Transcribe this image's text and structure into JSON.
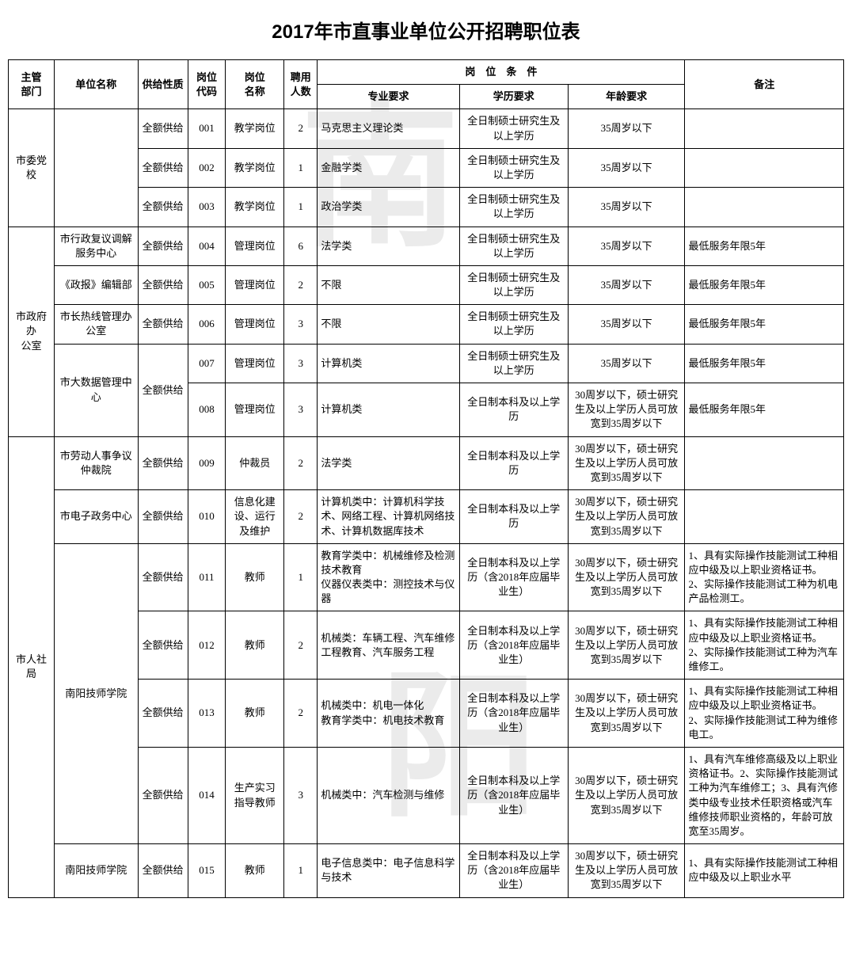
{
  "title": "2017年市直事业单位公开招聘职位表",
  "watermark1": "南",
  "watermark2": "阳",
  "headers": {
    "dept": "主管\n部门",
    "unit": "单位名称",
    "supply": "供给性质",
    "code": "岗位\n代码",
    "pos": "岗位\n名称",
    "num": "聘用\n人数",
    "cond": "岗　位　条　件",
    "major": "专业要求",
    "edu": "学历要求",
    "age": "年龄要求",
    "note": "备注"
  },
  "depts": [
    {
      "name": "市委党校",
      "units": [
        {
          "name": "",
          "rows": [
            {
              "supply": "全额供给",
              "code": "001",
              "pos": "教学岗位",
              "num": "2",
              "major": "马克思主义理论类",
              "edu": "全日制硕士研究生及以上学历",
              "age": "35周岁以下",
              "note": ""
            },
            {
              "supply": "全额供给",
              "code": "002",
              "pos": "教学岗位",
              "num": "1",
              "major": "金融学类",
              "edu": "全日制硕士研究生及以上学历",
              "age": "35周岁以下",
              "note": ""
            },
            {
              "supply": "全额供给",
              "code": "003",
              "pos": "教学岗位",
              "num": "1",
              "major": "政治学类",
              "edu": "全日制硕士研究生及以上学历",
              "age": "35周岁以下",
              "note": ""
            }
          ]
        }
      ]
    },
    {
      "name": "市政府办\n公室",
      "units": [
        {
          "name": "市行政复议调解服务中心",
          "rows": [
            {
              "supply": "全额供给",
              "code": "004",
              "pos": "管理岗位",
              "num": "6",
              "major": "法学类",
              "edu": "全日制硕士研究生及以上学历",
              "age": "35周岁以下",
              "note": "最低服务年限5年"
            }
          ]
        },
        {
          "name": "《政报》编辑部",
          "rows": [
            {
              "supply": "全额供给",
              "code": "005",
              "pos": "管理岗位",
              "num": "2",
              "major": "不限",
              "edu": "全日制硕士研究生及以上学历",
              "age": "35周岁以下",
              "note": "最低服务年限5年"
            }
          ]
        },
        {
          "name": "市长热线管理办公室",
          "rows": [
            {
              "supply": "全额供给",
              "code": "006",
              "pos": "管理岗位",
              "num": "3",
              "major": "不限",
              "edu": "全日制硕士研究生及以上学历",
              "age": "35周岁以下",
              "note": "最低服务年限5年"
            }
          ]
        },
        {
          "name": "市大数据管理中心",
          "rows": [
            {
              "supply": "全额供给",
              "code": "007",
              "pos": "管理岗位",
              "num": "3",
              "major": "计算机类",
              "edu": "全日制硕士研究生及以上学历",
              "age": "35周岁以下",
              "note": "最低服务年限5年"
            },
            {
              "supply": "",
              "code": "008",
              "pos": "管理岗位",
              "num": "3",
              "major": "计算机类",
              "edu": "全日制本科及以上学历",
              "age": "30周岁以下，硕士研究生及以上学历人员可放宽到35周岁以下",
              "note": "最低服务年限5年"
            }
          ],
          "supplySpan": 2,
          "supplyText": "全额供给"
        }
      ]
    },
    {
      "name": "市人社局",
      "units": [
        {
          "name": "市劳动人事争议仲裁院",
          "rows": [
            {
              "supply": "全额供给",
              "code": "009",
              "pos": "仲裁员",
              "num": "2",
              "major": "法学类",
              "edu": "全日制本科及以上学历",
              "age": "30周岁以下，硕士研究生及以上学历人员可放宽到35周岁以下",
              "note": ""
            }
          ]
        },
        {
          "name": "市电子政务中心",
          "rows": [
            {
              "supply": "全额供给",
              "code": "010",
              "pos": "信息化建设、运行及维护",
              "num": "2",
              "major": "计算机类中：计算机科学技术、网络工程、计算机网络技术、计算机数据库技术",
              "edu": "全日制本科及以上学历",
              "age": "30周岁以下，硕士研究生及以上学历人员可放宽到35周岁以下",
              "note": ""
            }
          ]
        },
        {
          "name": "南阳技师学院",
          "rows": [
            {
              "supply": "全额供给",
              "code": "011",
              "pos": "教师",
              "num": "1",
              "major": "教育学类中：机械维修及检测技术教育\n仪器仪表类中：测控技术与仪器",
              "edu": "全日制本科及以上学历（含2018年应届毕业生）",
              "age": "30周岁以下，硕士研究生及以上学历人员可放宽到35周岁以下",
              "note": "1、具有实际操作技能测试工种相应中级及以上职业资格证书。\n2、实际操作技能测试工种为机电产品检测工。"
            },
            {
              "supply": "全额供给",
              "code": "012",
              "pos": "教师",
              "num": "2",
              "major": "机械类：车辆工程、汽车维修工程教育、汽车服务工程",
              "edu": "全日制本科及以上学历（含2018年应届毕业生）",
              "age": "30周岁以下，硕士研究生及以上学历人员可放宽到35周岁以下",
              "note": "1、具有实际操作技能测试工种相应中级及以上职业资格证书。\n2、实际操作技能测试工种为汽车维修工。"
            },
            {
              "supply": "全额供给",
              "code": "013",
              "pos": "教师",
              "num": "2",
              "major": "机械类中：机电一体化\n教育学类中：机电技术教育",
              "edu": "全日制本科及以上学历（含2018年应届毕业生）",
              "age": "30周岁以下，硕士研究生及以上学历人员可放宽到35周岁以下",
              "note": "1、具有实际操作技能测试工种相应中级及以上职业资格证书。\n2、实际操作技能测试工种为维修电工。"
            },
            {
              "supply": "全额供给",
              "code": "014",
              "pos": "生产实习指导教师",
              "num": "3",
              "major": "机械类中：汽车检测与维修",
              "edu": "全日制本科及以上学历（含2018年应届毕业生）",
              "age": "30周岁以下，硕士研究生及以上学历人员可放宽到35周岁以下",
              "note": "1、具有汽车维修高级及以上职业资格证书。2、实际操作技能测试工种为汽车维修工；3、具有汽修类中级专业技术任职资格或汽车维修技师职业资格的，年龄可放宽至35周岁。"
            }
          ]
        },
        {
          "name": "南阳技师学院",
          "rows": [
            {
              "supply": "全额供给",
              "code": "015",
              "pos": "教师",
              "num": "1",
              "major": "电子信息类中：电子信息科学与技术",
              "edu": "全日制本科及以上学历（含2018年应届毕业生）",
              "age": "30周岁以下，硕士研究生及以上学历人员可放宽到35周岁以下",
              "note": "1、具有实际操作技能测试工种相应中级及以上职业水平"
            }
          ]
        }
      ]
    }
  ]
}
